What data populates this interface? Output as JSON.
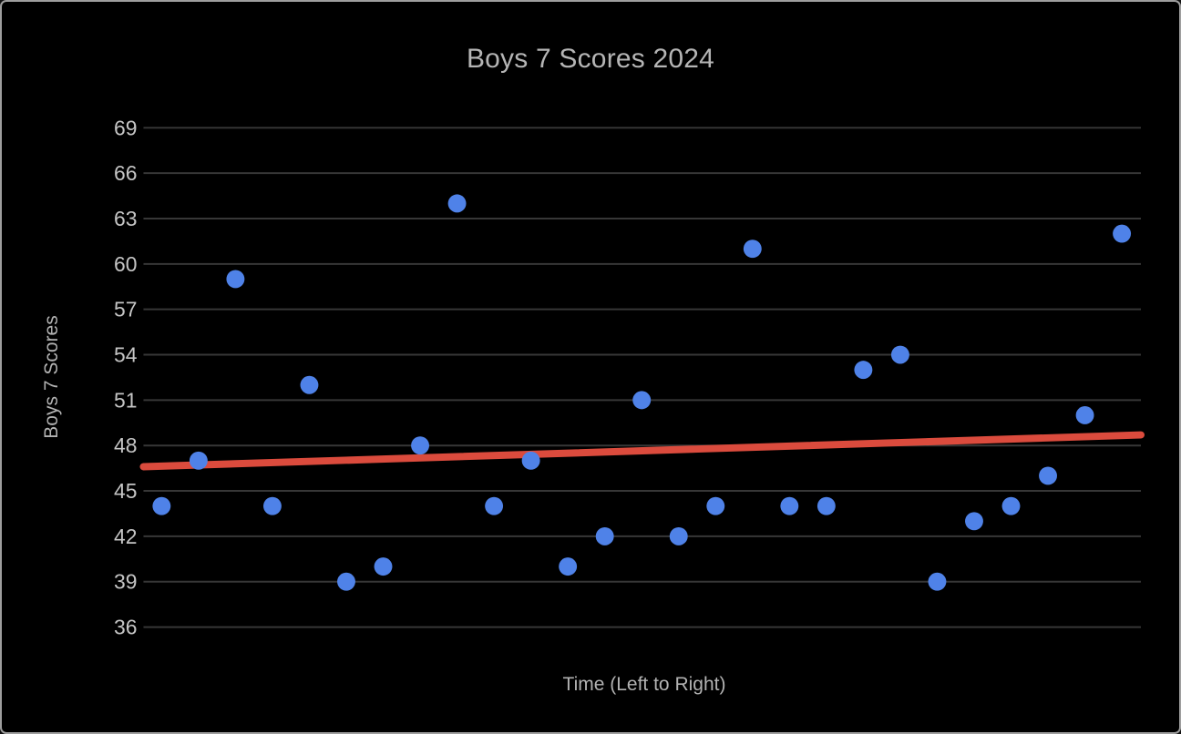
{
  "window": {
    "background_color": "#000000",
    "border_color": "#9e9e9e"
  },
  "chart_data": {
    "type": "scatter",
    "title": "Boys 7 Scores 2024",
    "xlabel": "Time (Left to Right)",
    "ylabel": "Boys 7 Scores",
    "x": [
      1,
      2,
      3,
      4,
      5,
      6,
      7,
      8,
      9,
      10,
      11,
      12,
      13,
      14,
      15,
      16,
      17,
      18,
      19,
      20,
      21,
      22,
      23,
      24,
      25,
      26,
      27
    ],
    "series": [
      {
        "name": "Boys 7 Scores",
        "values": [
          44,
          47,
          59,
          44,
          52,
          39,
          40,
          48,
          64,
          44,
          47,
          40,
          42,
          51,
          42,
          44,
          61,
          44,
          44,
          53,
          54,
          39,
          43,
          44,
          46,
          50,
          62
        ]
      }
    ],
    "trendline": {
      "type": "linear",
      "start_value": 46.6,
      "end_value": 48.7,
      "color": "#db4b3d"
    },
    "point_color": "#4f82e8",
    "grid": {
      "show": true,
      "color": "#373737",
      "yticks": [
        36,
        39,
        42,
        45,
        48,
        51,
        54,
        57,
        60,
        63,
        66,
        69
      ]
    },
    "ylim": [
      36,
      69
    ],
    "legend_position": "none",
    "title_color": "#b5b5b5",
    "axis_label_color": "#b2b2b2",
    "tick_label_color": "#c5c5c5"
  }
}
